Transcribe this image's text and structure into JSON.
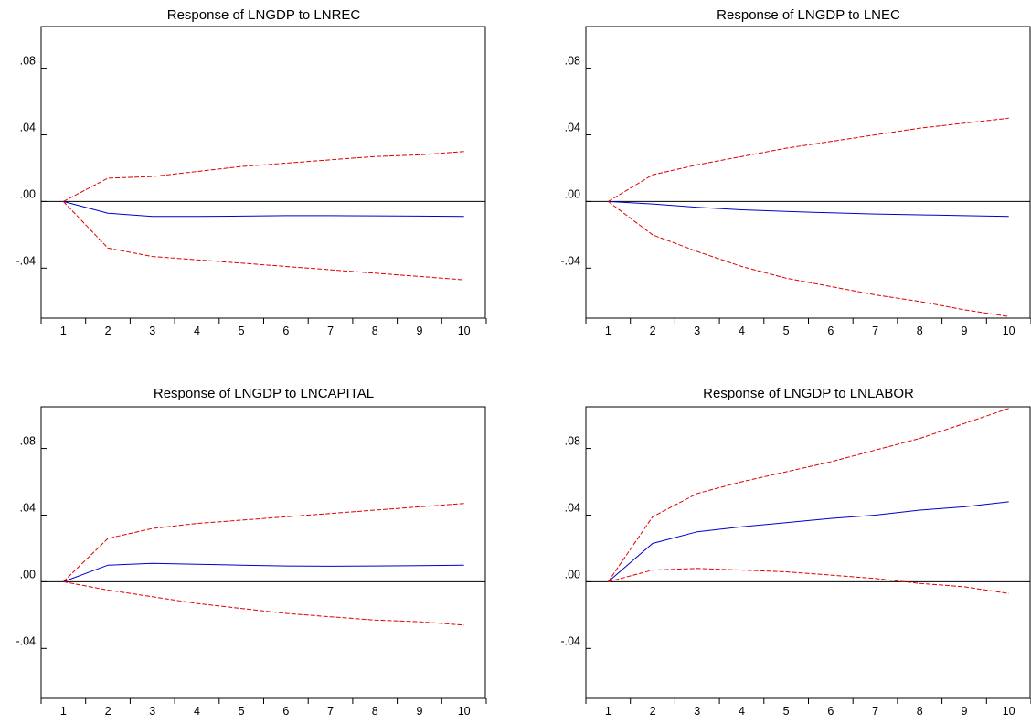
{
  "chart_data": [
    {
      "type": "line",
      "title": "Response of LNGDP to LNREC",
      "x": [
        1,
        2,
        3,
        4,
        5,
        6,
        7,
        8,
        9,
        10
      ],
      "ylim": [
        -0.07,
        0.105
      ],
      "yticks": [
        -0.04,
        0.0,
        0.04,
        0.08
      ],
      "ytick_labels": [
        "-.04",
        ".00",
        ".04",
        ".08"
      ],
      "zero_line": true,
      "series": [
        {
          "role": "response",
          "color": "#0000cc",
          "style": "solid",
          "values": [
            0.0,
            -0.007,
            -0.009,
            -0.009,
            -0.0088,
            -0.0085,
            -0.0085,
            -0.0086,
            -0.0088,
            -0.009
          ]
        },
        {
          "role": "upper",
          "color": "#dd0000",
          "style": "dashed",
          "values": [
            0.0,
            0.014,
            0.015,
            0.018,
            0.021,
            0.023,
            0.025,
            0.027,
            0.028,
            0.03
          ]
        },
        {
          "role": "lower",
          "color": "#dd0000",
          "style": "dashed",
          "values": [
            0.0,
            -0.028,
            -0.033,
            -0.035,
            -0.037,
            -0.039,
            -0.041,
            -0.043,
            -0.045,
            -0.047
          ]
        }
      ]
    },
    {
      "type": "line",
      "title": "Response of LNGDP to LNEC",
      "x": [
        1,
        2,
        3,
        4,
        5,
        6,
        7,
        8,
        9,
        10
      ],
      "ylim": [
        -0.07,
        0.105
      ],
      "yticks": [
        -0.04,
        0.0,
        0.04,
        0.08
      ],
      "ytick_labels": [
        "-.04",
        ".00",
        ".04",
        ".08"
      ],
      "zero_line": true,
      "series": [
        {
          "role": "response",
          "color": "#0000cc",
          "style": "solid",
          "values": [
            0.0,
            -0.0015,
            -0.0035,
            -0.005,
            -0.006,
            -0.0068,
            -0.0075,
            -0.008,
            -0.0085,
            -0.009
          ]
        },
        {
          "role": "upper",
          "color": "#dd0000",
          "style": "dashed",
          "values": [
            0.0,
            0.016,
            0.022,
            0.027,
            0.032,
            0.036,
            0.04,
            0.044,
            0.047,
            0.05
          ]
        },
        {
          "role": "lower",
          "color": "#dd0000",
          "style": "dashed",
          "values": [
            0.0,
            -0.02,
            -0.03,
            -0.039,
            -0.046,
            -0.051,
            -0.056,
            -0.06,
            -0.065,
            -0.069
          ]
        }
      ]
    },
    {
      "type": "line",
      "title": "Response of LNGDP to LNCAPITAL",
      "x": [
        1,
        2,
        3,
        4,
        5,
        6,
        7,
        8,
        9,
        10
      ],
      "ylim": [
        -0.07,
        0.105
      ],
      "yticks": [
        -0.04,
        0.0,
        0.04,
        0.08
      ],
      "ytick_labels": [
        "-.04",
        ".00",
        ".04",
        ".08"
      ],
      "zero_line": true,
      "series": [
        {
          "role": "response",
          "color": "#0000cc",
          "style": "solid",
          "values": [
            0.0,
            0.01,
            0.011,
            0.0105,
            0.01,
            0.0095,
            0.0093,
            0.0095,
            0.0097,
            0.01
          ]
        },
        {
          "role": "upper",
          "color": "#dd0000",
          "style": "dashed",
          "values": [
            0.0,
            0.026,
            0.032,
            0.035,
            0.037,
            0.039,
            0.041,
            0.043,
            0.045,
            0.047
          ]
        },
        {
          "role": "lower",
          "color": "#dd0000",
          "style": "dashed",
          "values": [
            0.0,
            -0.005,
            -0.009,
            -0.013,
            -0.016,
            -0.019,
            -0.021,
            -0.023,
            -0.024,
            -0.026
          ]
        }
      ]
    },
    {
      "type": "line",
      "title": "Response of LNGDP to LNLABOR",
      "x": [
        1,
        2,
        3,
        4,
        5,
        6,
        7,
        8,
        9,
        10
      ],
      "ylim": [
        -0.07,
        0.105
      ],
      "yticks": [
        -0.04,
        0.0,
        0.04,
        0.08
      ],
      "ytick_labels": [
        "-.04",
        ".00",
        ".04",
        ".08"
      ],
      "zero_line": true,
      "series": [
        {
          "role": "response",
          "color": "#0000cc",
          "style": "solid",
          "values": [
            0.0,
            0.023,
            0.03,
            0.033,
            0.0355,
            0.038,
            0.04,
            0.043,
            0.045,
            0.048
          ]
        },
        {
          "role": "upper",
          "color": "#dd0000",
          "style": "dashed",
          "values": [
            0.0,
            0.039,
            0.053,
            0.06,
            0.066,
            0.072,
            0.079,
            0.086,
            0.095,
            0.104
          ]
        },
        {
          "role": "lower",
          "color": "#dd0000",
          "style": "dashed",
          "values": [
            0.0,
            0.007,
            0.008,
            0.007,
            0.006,
            0.004,
            0.002,
            -0.001,
            -0.003,
            -0.007
          ]
        }
      ]
    }
  ]
}
